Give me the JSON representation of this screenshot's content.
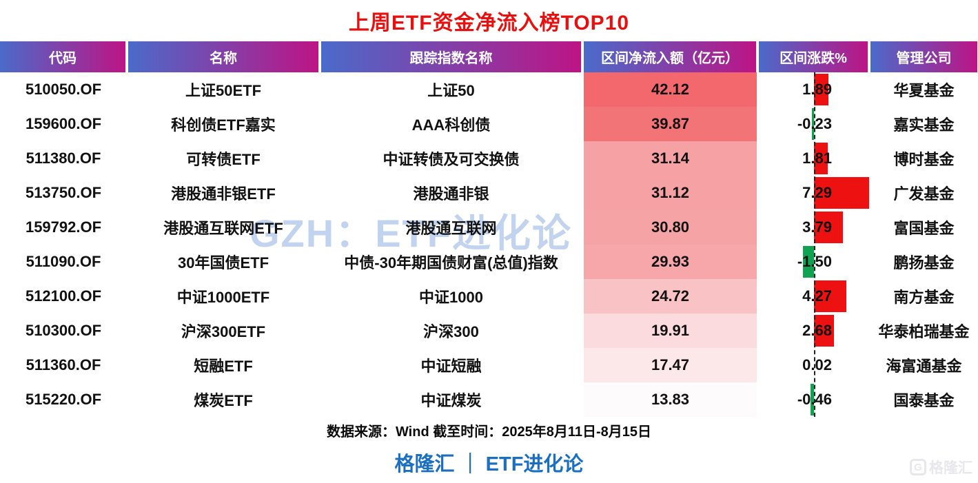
{
  "title": "上周ETF资金净流入榜TOP10",
  "watermark": "GZH：ETF进化论",
  "source_note": "数据来源：Wind 截至时间：2025年8月11日-8月15日",
  "brand_footer": "格隆汇 ｜ ETF进化论",
  "corner_logo": {
    "glyph": "G",
    "label": "格隆汇"
  },
  "colors": {
    "title_red": "#e8100f",
    "header_gradient_left": "#4a6bca",
    "header_gradient_right": "#bd1485",
    "brand_blue": "#1b6fc3",
    "axis_dash": "#222222"
  },
  "chart_data": {
    "type": "table",
    "title": "上周ETF资金净流入榜TOP10",
    "columns": [
      "代码",
      "名称",
      "跟踪指数名称",
      "区间净流入额（亿元）",
      "区间涨跌%",
      "管理公司"
    ],
    "rows": [
      {
        "code": "510050.OF",
        "name": "上证50ETF",
        "index": "上证50",
        "inflow": 42.12,
        "change": 1.89,
        "company": "华夏基金"
      },
      {
        "code": "159600.OF",
        "name": "科创债ETF嘉实",
        "index": "AAA科创债",
        "inflow": 39.87,
        "change": -0.23,
        "company": "嘉实基金"
      },
      {
        "code": "511380.OF",
        "name": "可转债ETF",
        "index": "中证转债及可交换债",
        "inflow": 31.14,
        "change": 1.81,
        "company": "博时基金"
      },
      {
        "code": "513750.OF",
        "name": "港股通非银ETF",
        "index": "港股通非银",
        "inflow": 31.12,
        "change": 7.29,
        "company": "广发基金"
      },
      {
        "code": "159792.OF",
        "name": "港股通互联网ETF",
        "index": "港股通互联网",
        "inflow": 30.8,
        "change": 3.79,
        "company": "富国基金"
      },
      {
        "code": "511090.OF",
        "name": "30年国债ETF",
        "index": "中债-30年期国债财富(总值)指数",
        "inflow": 29.93,
        "change": -1.5,
        "company": "鹏扬基金"
      },
      {
        "code": "512100.OF",
        "name": "中证1000ETF",
        "index": "中证1000",
        "inflow": 24.72,
        "change": 4.27,
        "company": "南方基金"
      },
      {
        "code": "510300.OF",
        "name": "沪深300ETF",
        "index": "沪深300",
        "inflow": 19.91,
        "change": 2.68,
        "company": "华泰柏瑞基金"
      },
      {
        "code": "511360.OF",
        "name": "短融ETF",
        "index": "中证短融",
        "inflow": 17.47,
        "change": 0.02,
        "company": "海富通基金"
      },
      {
        "code": "515220.OF",
        "name": "煤炭ETF",
        "index": "中证煤炭",
        "inflow": 13.83,
        "change": -0.46,
        "company": "国泰基金"
      }
    ],
    "inflow_colorscale": {
      "min_value": 13.83,
      "max_value": 42.12,
      "min_color": "#fdfbfc",
      "max_color": "#f2686c"
    },
    "change_bar": {
      "axis_max": 7.29,
      "positive_color": "#ee1111",
      "negative_color": "#10a452"
    }
  }
}
